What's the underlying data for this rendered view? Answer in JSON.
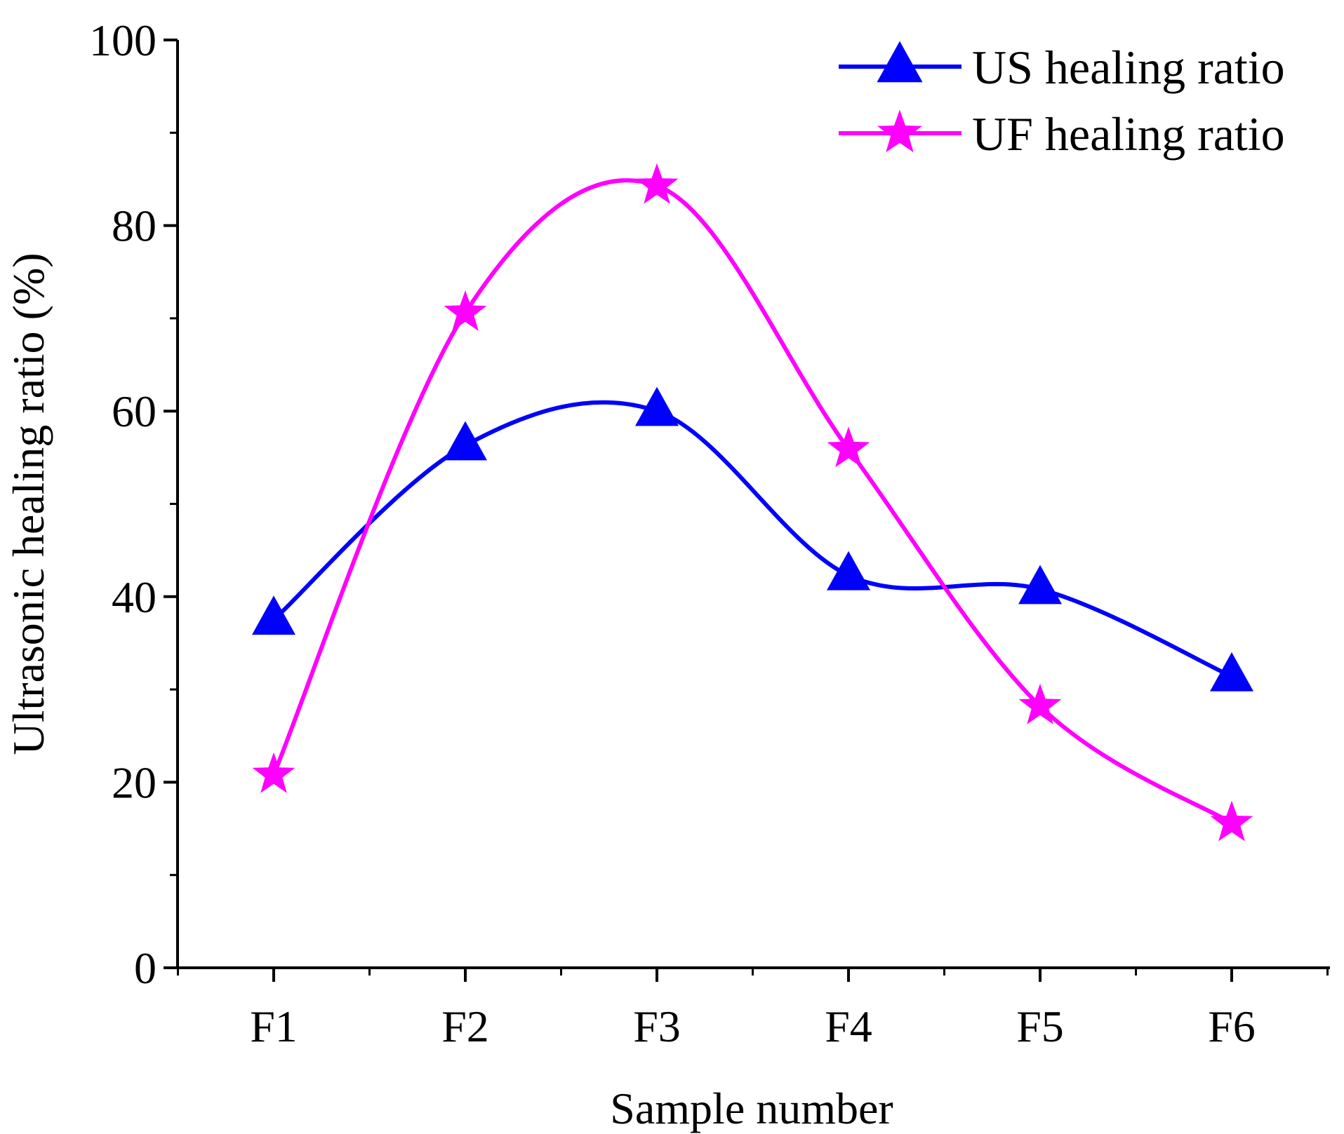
{
  "chart_data": {
    "type": "line",
    "title": "",
    "xlabel": "Sample number",
    "ylabel": "Ultrasonic healing ratio (%)",
    "categories": [
      "F1",
      "F2",
      "F3",
      "F4",
      "F5",
      "F6"
    ],
    "ylim": [
      0,
      100
    ],
    "yticks": [
      0,
      20,
      40,
      60,
      80,
      100
    ],
    "yticks_text": [
      "0",
      "20",
      "40",
      "60",
      "80",
      "100"
    ],
    "grid": false,
    "legend_position": "top-right",
    "series": [
      {
        "name": "US healing ratio",
        "color": "#0000ff",
        "marker": "triangle",
        "smooth": true,
        "values": [
          37.5,
          56.3,
          60.0,
          42.3,
          40.8,
          31.4
        ]
      },
      {
        "name": "UF healing ratio",
        "color": "#ff00ff",
        "marker": "star",
        "smooth": true,
        "values": [
          20.8,
          70.6,
          84.3,
          55.9,
          28.2,
          15.6
        ]
      }
    ]
  }
}
